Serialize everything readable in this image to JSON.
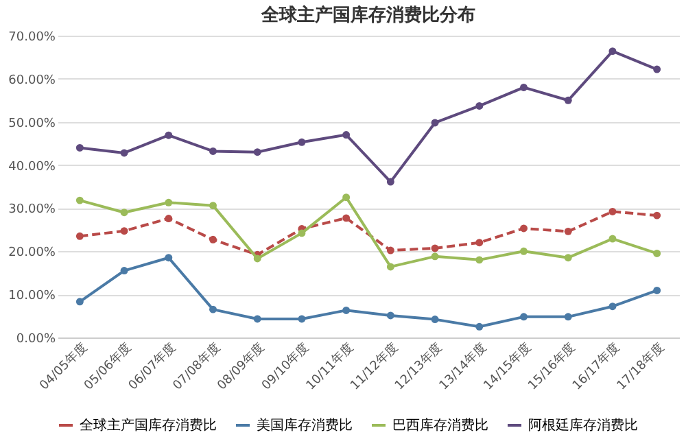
{
  "chart_data": {
    "type": "line",
    "title": "全球主产国库存消费比分布",
    "categories": [
      "04/05年度",
      "05/06年度",
      "06/07年度",
      "07/08年度",
      "08/09年度",
      "09/10年度",
      "10/11年度",
      "11/12年度",
      "12/13年度",
      "13/14年度",
      "14/15年度",
      "15/16年度",
      "16/17年度",
      "17/18年度"
    ],
    "series": [
      {
        "name": "全球主产国库存消费比",
        "color": "#b94a48",
        "line_style": "dashed",
        "values": [
          23.5,
          24.7,
          27.6,
          22.7,
          19.2,
          25.2,
          27.7,
          20.2,
          20.7,
          22.0,
          25.3,
          24.6,
          29.2,
          28.3
        ]
      },
      {
        "name": "美国库存消费比",
        "color": "#4a7aa6",
        "line_style": "solid",
        "values": [
          8.3,
          15.5,
          18.5,
          6.5,
          4.3,
          4.3,
          6.3,
          5.1,
          4.2,
          2.5,
          4.8,
          4.8,
          7.2,
          10.9
        ]
      },
      {
        "name": "巴西库存消费比",
        "color": "#9bbb59",
        "line_style": "solid",
        "values": [
          31.8,
          29.0,
          31.3,
          30.6,
          18.3,
          24.2,
          32.5,
          16.4,
          18.8,
          18.0,
          20.0,
          18.5,
          22.9,
          19.5
        ]
      },
      {
        "name": "阿根廷库存消费比",
        "color": "#5e4a7e",
        "line_style": "solid",
        "values": [
          44.0,
          42.8,
          46.9,
          43.2,
          43.0,
          45.3,
          47.0,
          36.1,
          49.8,
          53.7,
          58.0,
          55.0,
          66.4,
          62.2
        ]
      }
    ],
    "ylim": [
      0,
      70
    ],
    "yticks": [
      {
        "value": 0,
        "label": "0.00%"
      },
      {
        "value": 10,
        "label": "10.00%"
      },
      {
        "value": 20,
        "label": "20.00%"
      },
      {
        "value": 30,
        "label": "30.00%"
      },
      {
        "value": 40,
        "label": "40.00%"
      },
      {
        "value": 50,
        "label": "50.00%"
      },
      {
        "value": 60,
        "label": "60.00%"
      },
      {
        "value": 70,
        "label": "70.00%"
      }
    ],
    "grid": "y",
    "legend": "bottom",
    "marker": "circle"
  }
}
